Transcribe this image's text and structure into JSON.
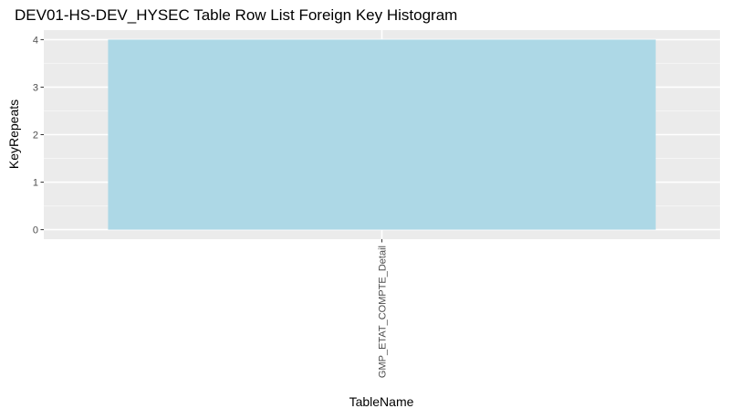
{
  "chart_data": {
    "type": "bar",
    "title": "DEV01-HS-DEV_HYSEC Table Row List Foreign Key Histogram",
    "xlabel": "TableName",
    "ylabel": "KeyRepeats",
    "categories": [
      "GMP_ETAT_COMPTE_Detail"
    ],
    "values": [
      4
    ],
    "ylim": [
      -0.2,
      4.2
    ],
    "yticks": [
      0,
      1,
      2,
      3,
      4
    ],
    "grid": true,
    "colors": {
      "panel_background": "#ebebeb",
      "grid_major": "#ffffff",
      "grid_minor": "#f5f5f5",
      "bar_fill": "#add8e6",
      "tick_text": "#4d4d4d",
      "axis_title": "#000000",
      "tick_mark": "#333333"
    }
  }
}
